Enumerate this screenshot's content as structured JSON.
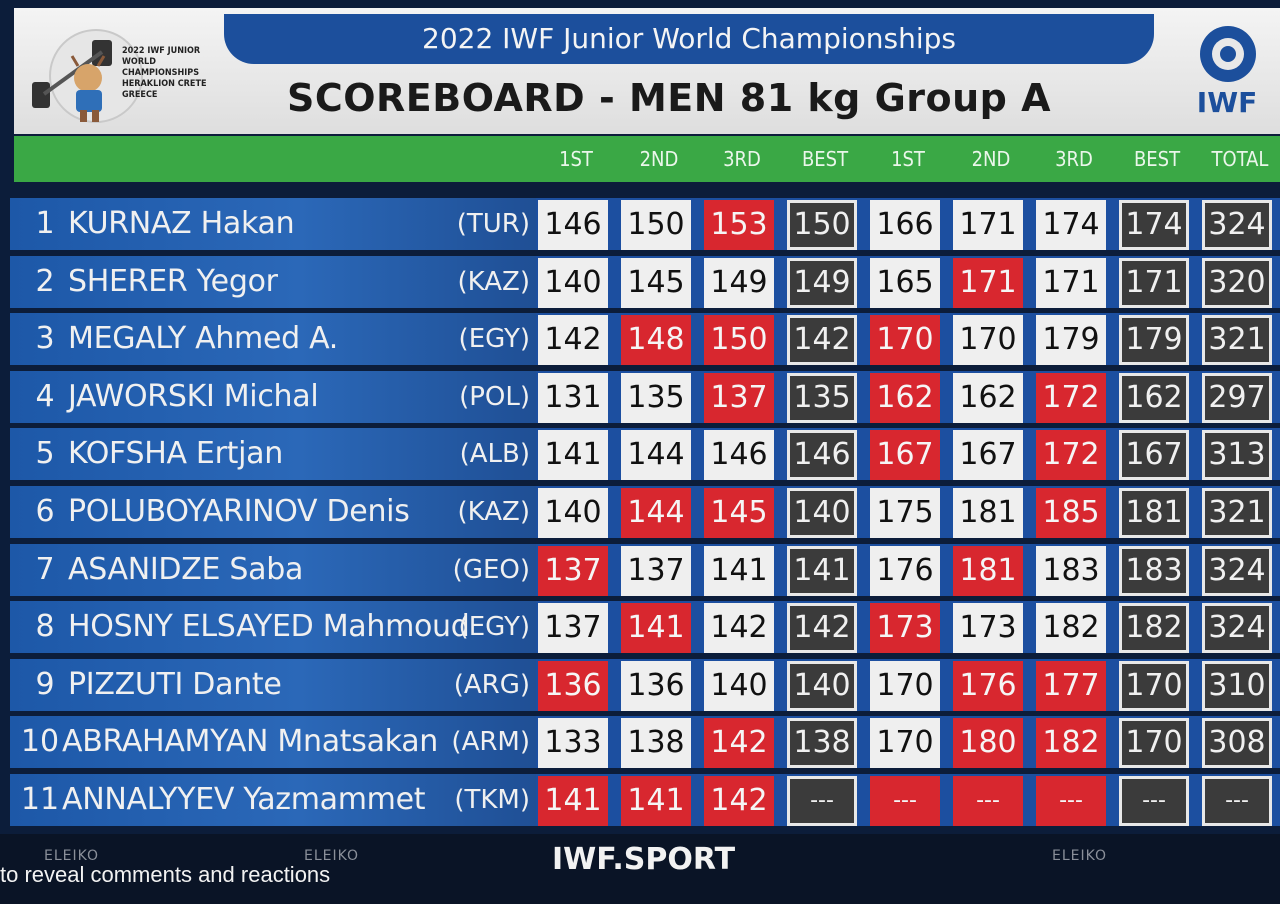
{
  "header": {
    "event_title": "2022 IWF Junior World Championships",
    "board_title": "SCOREBOARD - MEN 81 kg Group A",
    "mascot_text": "2022 IWF JUNIOR WORLD CHAMPIONSHIPS HERAKLION CRETE GREECE",
    "logo_text": "IWF"
  },
  "columns": [
    "1ST",
    "2ND",
    "3RD",
    "BEST",
    "1ST",
    "2ND",
    "3RD",
    "BEST",
    "TOTAL"
  ],
  "athletes": [
    {
      "rank": "1",
      "name": "KURNAZ Hakan",
      "nation": "(TUR)",
      "snatch": [
        {
          "v": "146",
          "s": "good"
        },
        {
          "v": "150",
          "s": "good"
        },
        {
          "v": "153",
          "s": "miss"
        }
      ],
      "snatch_best": "150",
      "cj": [
        {
          "v": "166",
          "s": "good"
        },
        {
          "v": "171",
          "s": "good"
        },
        {
          "v": "174",
          "s": "good"
        }
      ],
      "cj_best": "174",
      "total": "324"
    },
    {
      "rank": "2",
      "name": "SHERER Yegor",
      "nation": "(KAZ)",
      "snatch": [
        {
          "v": "140",
          "s": "good"
        },
        {
          "v": "145",
          "s": "good"
        },
        {
          "v": "149",
          "s": "good"
        }
      ],
      "snatch_best": "149",
      "cj": [
        {
          "v": "165",
          "s": "good"
        },
        {
          "v": "171",
          "s": "miss"
        },
        {
          "v": "171",
          "s": "good"
        }
      ],
      "cj_best": "171",
      "total": "320"
    },
    {
      "rank": "3",
      "name": "MEGALY Ahmed A.",
      "nation": "(EGY)",
      "snatch": [
        {
          "v": "142",
          "s": "good"
        },
        {
          "v": "148",
          "s": "miss"
        },
        {
          "v": "150",
          "s": "miss"
        }
      ],
      "snatch_best": "142",
      "cj": [
        {
          "v": "170",
          "s": "miss"
        },
        {
          "v": "170",
          "s": "good"
        },
        {
          "v": "179",
          "s": "good"
        }
      ],
      "cj_best": "179",
      "total": "321"
    },
    {
      "rank": "4",
      "name": "JAWORSKI Michal",
      "nation": "(POL)",
      "snatch": [
        {
          "v": "131",
          "s": "good"
        },
        {
          "v": "135",
          "s": "good"
        },
        {
          "v": "137",
          "s": "miss"
        }
      ],
      "snatch_best": "135",
      "cj": [
        {
          "v": "162",
          "s": "miss"
        },
        {
          "v": "162",
          "s": "good"
        },
        {
          "v": "172",
          "s": "miss"
        }
      ],
      "cj_best": "162",
      "total": "297"
    },
    {
      "rank": "5",
      "name": "KOFSHA Ertjan",
      "nation": "(ALB)",
      "snatch": [
        {
          "v": "141",
          "s": "good"
        },
        {
          "v": "144",
          "s": "good"
        },
        {
          "v": "146",
          "s": "good"
        }
      ],
      "snatch_best": "146",
      "cj": [
        {
          "v": "167",
          "s": "miss"
        },
        {
          "v": "167",
          "s": "good"
        },
        {
          "v": "172",
          "s": "miss"
        }
      ],
      "cj_best": "167",
      "total": "313"
    },
    {
      "rank": "6",
      "name": "POLUBOYARINOV Denis",
      "nation": "(KAZ)",
      "snatch": [
        {
          "v": "140",
          "s": "good"
        },
        {
          "v": "144",
          "s": "miss"
        },
        {
          "v": "145",
          "s": "miss"
        }
      ],
      "snatch_best": "140",
      "cj": [
        {
          "v": "175",
          "s": "good"
        },
        {
          "v": "181",
          "s": "good"
        },
        {
          "v": "185",
          "s": "miss"
        }
      ],
      "cj_best": "181",
      "total": "321"
    },
    {
      "rank": "7",
      "name": "ASANIDZE Saba",
      "nation": "(GEO)",
      "snatch": [
        {
          "v": "137",
          "s": "miss"
        },
        {
          "v": "137",
          "s": "good"
        },
        {
          "v": "141",
          "s": "good"
        }
      ],
      "snatch_best": "141",
      "cj": [
        {
          "v": "176",
          "s": "good"
        },
        {
          "v": "181",
          "s": "miss"
        },
        {
          "v": "183",
          "s": "good"
        }
      ],
      "cj_best": "183",
      "total": "324"
    },
    {
      "rank": "8",
      "name": "HOSNY ELSAYED Mahmoud",
      "nation": "(EGY)",
      "snatch": [
        {
          "v": "137",
          "s": "good"
        },
        {
          "v": "141",
          "s": "miss"
        },
        {
          "v": "142",
          "s": "good"
        }
      ],
      "snatch_best": "142",
      "cj": [
        {
          "v": "173",
          "s": "miss"
        },
        {
          "v": "173",
          "s": "good"
        },
        {
          "v": "182",
          "s": "good"
        }
      ],
      "cj_best": "182",
      "total": "324"
    },
    {
      "rank": "9",
      "name": "PIZZUTI Dante",
      "nation": "(ARG)",
      "snatch": [
        {
          "v": "136",
          "s": "miss"
        },
        {
          "v": "136",
          "s": "good"
        },
        {
          "v": "140",
          "s": "good"
        }
      ],
      "snatch_best": "140",
      "cj": [
        {
          "v": "170",
          "s": "good"
        },
        {
          "v": "176",
          "s": "miss"
        },
        {
          "v": "177",
          "s": "miss"
        }
      ],
      "cj_best": "170",
      "total": "310"
    },
    {
      "rank": "10",
      "name": "ABRAHAMYAN Mnatsakan",
      "nation": "(ARM)",
      "snatch": [
        {
          "v": "133",
          "s": "good"
        },
        {
          "v": "138",
          "s": "good"
        },
        {
          "v": "142",
          "s": "miss"
        }
      ],
      "snatch_best": "138",
      "cj": [
        {
          "v": "170",
          "s": "good"
        },
        {
          "v": "180",
          "s": "miss"
        },
        {
          "v": "182",
          "s": "miss"
        }
      ],
      "cj_best": "170",
      "total": "308"
    },
    {
      "rank": "11",
      "name": "ANNALYYEV Yazmammet",
      "nation": "(TKM)",
      "snatch": [
        {
          "v": "141",
          "s": "miss"
        },
        {
          "v": "141",
          "s": "miss"
        },
        {
          "v": "142",
          "s": "miss"
        }
      ],
      "snatch_best": "---",
      "cj": [
        {
          "v": "---",
          "s": "miss"
        },
        {
          "v": "---",
          "s": "miss"
        },
        {
          "v": "---",
          "s": "miss"
        }
      ],
      "cj_best": "---",
      "total": "---"
    }
  ],
  "footer": {
    "site": "IWF.SPORT",
    "brand": "ELEIKO",
    "reveal_text": "to reveal comments and reactions"
  },
  "colors": {
    "good": "#efefef",
    "miss": "#d8272f",
    "best_bg": "#3b3b3b",
    "name_band": "#1d58a8",
    "header_green": "#3aa845",
    "title_blue": "#1c4f9c"
  }
}
